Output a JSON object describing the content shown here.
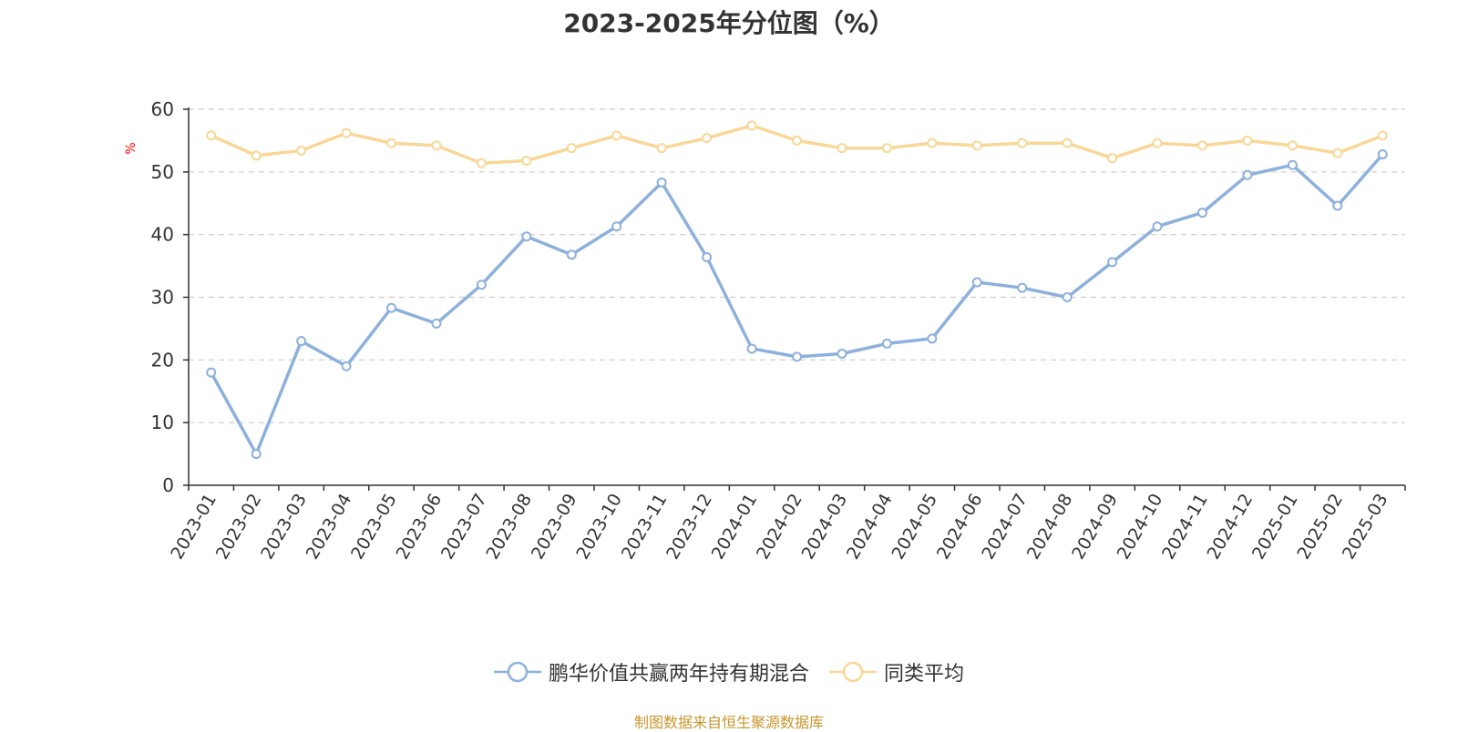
{
  "chart_data": {
    "type": "line",
    "title": "2023-2025年分位图（%）",
    "unit_label": "%",
    "categories": [
      "2023-01",
      "2023-02",
      "2023-03",
      "2023-04",
      "2023-05",
      "2023-06",
      "2023-07",
      "2023-08",
      "2023-09",
      "2023-10",
      "2023-11",
      "2023-12",
      "2024-01",
      "2024-02",
      "2024-03",
      "2024-04",
      "2024-05",
      "2024-06",
      "2024-07",
      "2024-08",
      "2024-09",
      "2024-10",
      "2024-11",
      "2024-12",
      "2025-01",
      "2025-02",
      "2025-03"
    ],
    "series": [
      {
        "name": "鹏华价值共赢两年持有期混合",
        "color": "#8eb0dc",
        "values": [
          18.0,
          5.0,
          23.0,
          19.0,
          28.3,
          25.8,
          32.0,
          39.7,
          36.8,
          41.3,
          48.3,
          36.4,
          21.8,
          20.5,
          21.0,
          22.6,
          23.4,
          32.4,
          31.5,
          30.0,
          35.6,
          41.3,
          43.5,
          49.5,
          51.1,
          44.6,
          52.8
        ]
      },
      {
        "name": "同类平均",
        "color": "#f8d898",
        "values": [
          55.8,
          52.6,
          53.4,
          56.2,
          54.6,
          54.2,
          51.4,
          51.8,
          53.8,
          55.8,
          53.8,
          55.4,
          57.4,
          55.0,
          53.8,
          53.8,
          54.6,
          54.2,
          54.6,
          54.6,
          52.2,
          54.6,
          54.2,
          55.0,
          54.2,
          53.0,
          55.8
        ]
      }
    ],
    "yticks": [
      0,
      10,
      20,
      30,
      40,
      50,
      60
    ],
    "ylim": [
      0,
      60
    ],
    "grid": true,
    "legend_position": "bottom"
  },
  "footer": {
    "source": "制图数据来自恒生聚源数据库"
  }
}
